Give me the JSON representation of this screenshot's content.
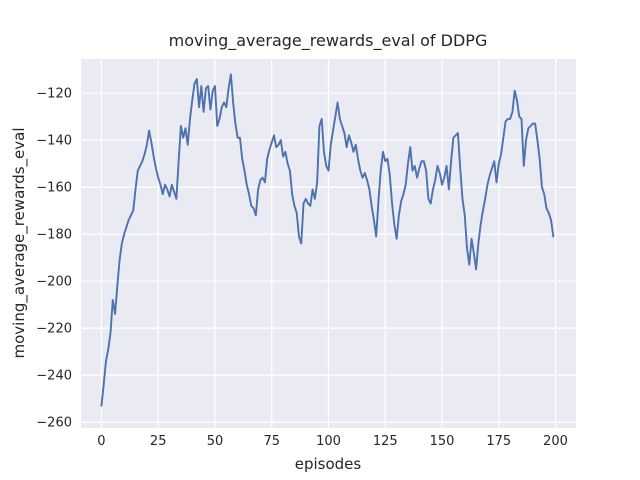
{
  "figure": {
    "kind": "matplotlib-seaborn-figure"
  },
  "chart_data": {
    "type": "line",
    "title": "moving_average_rewards_eval of DDPG",
    "xlabel": "episodes",
    "ylabel": "moving_average_rewards_eval",
    "legend_position": "none",
    "grid": true,
    "x_ticks": [
      0,
      25,
      50,
      75,
      100,
      125,
      150,
      175,
      200
    ],
    "y_ticks": [
      -260,
      -240,
      -220,
      -200,
      -180,
      -160,
      -140,
      -120
    ],
    "xlim": [
      -9,
      209
    ],
    "ylim": [
      -262.5,
      -105.5
    ],
    "style": {
      "plot_background": "#EAEAF2",
      "grid_color": "#FFFFFF",
      "line_color": "#4C72B0",
      "text_color": "#262626",
      "figure_background": "#FFFFFF"
    },
    "series": [
      {
        "name": "moving_average_rewards_eval",
        "x_start": 0,
        "x_step": 1,
        "values": [
          -253,
          -244,
          -234,
          -229,
          -222,
          -208,
          -214,
          -202,
          -191,
          -184,
          -180,
          -177,
          -174,
          -172,
          -170,
          -161,
          -153,
          -151,
          -149,
          -146,
          -142,
          -136,
          -141,
          -147,
          -152,
          -156,
          -159,
          -163,
          -159,
          -161,
          -164,
          -159,
          -162,
          -165,
          -149,
          -134,
          -139,
          -135,
          -142,
          -131,
          -123,
          -116,
          -114,
          -126,
          -117,
          -128,
          -118,
          -117,
          -127,
          -119,
          -117,
          -134,
          -131,
          -126,
          -124,
          -126,
          -118,
          -112,
          -124,
          -133,
          -139,
          -139,
          -148,
          -153,
          -159,
          -163,
          -168,
          -169,
          -172,
          -161,
          -157,
          -156,
          -158,
          -148,
          -144,
          -141,
          -138,
          -143,
          -142,
          -140,
          -147,
          -145,
          -150,
          -153,
          -163,
          -168,
          -171,
          -181,
          -184,
          -167,
          -165,
          -167,
          -168,
          -161,
          -165,
          -158,
          -134,
          -131,
          -145,
          -151,
          -153,
          -142,
          -136,
          -130,
          -124,
          -131,
          -134,
          -137,
          -143,
          -138,
          -141,
          -145,
          -142,
          -148,
          -153,
          -156,
          -154,
          -157,
          -161,
          -168,
          -174,
          -181,
          -166,
          -153,
          -145,
          -149,
          -148,
          -155,
          -167,
          -176,
          -182,
          -172,
          -166,
          -163,
          -159,
          -150,
          -143,
          -153,
          -151,
          -156,
          -152,
          -149,
          -149,
          -153,
          -165,
          -167,
          -161,
          -157,
          -151,
          -154,
          -159,
          -156,
          -151,
          -161,
          -149,
          -139,
          -138,
          -137,
          -152,
          -165,
          -172,
          -186,
          -193,
          -182,
          -188,
          -195,
          -184,
          -176,
          -170,
          -165,
          -159,
          -155,
          -152,
          -149,
          -158,
          -150,
          -146,
          -139,
          -132,
          -131,
          -131,
          -128,
          -119,
          -123,
          -130,
          -131,
          -151,
          -140,
          -135,
          -134,
          -133,
          -133,
          -140,
          -148,
          -160,
          -163,
          -169,
          -171,
          -174,
          -181
        ]
      }
    ]
  }
}
